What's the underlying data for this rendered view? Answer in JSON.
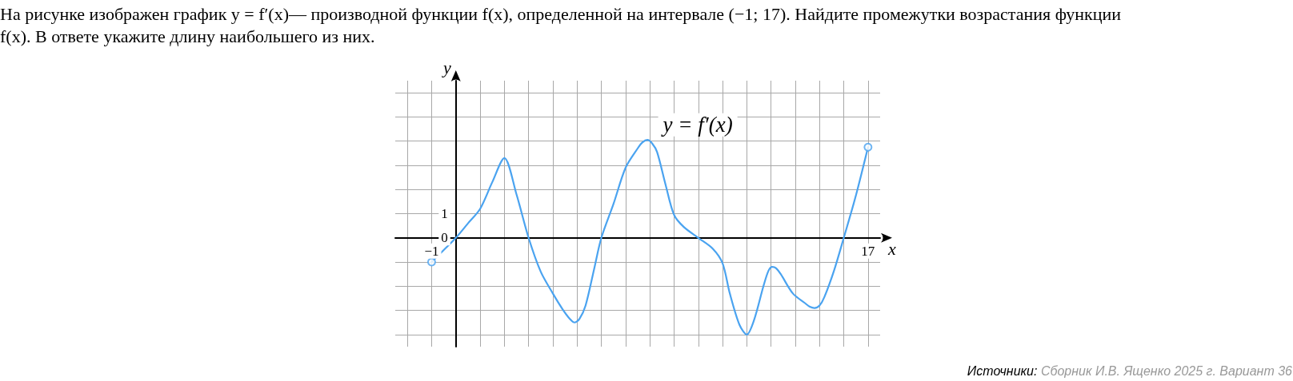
{
  "chart_data": {
    "type": "line",
    "title": "На рисунке изображен график y = f′(x)— производной функции f(x), определенной на интервале (−1; 17). Найдите промежутки возрастания функции f(x). В ответе укажите длину наибольшего из них.",
    "xlabel": "x",
    "ylabel": "y",
    "annotations": [
      "Источники: Сборник И.В. Ященко 2025 г. Вариант 36"
    ],
    "xlim": [
      -2.5,
      17.5
    ],
    "ylim": [
      -4.5,
      6.5
    ],
    "xticks": [
      {
        "value": -2,
        "label": null
      },
      {
        "value": -1,
        "label": "−1"
      },
      {
        "value": 0,
        "label": null
      },
      {
        "value": 1,
        "label": null
      },
      {
        "value": 2,
        "label": null
      },
      {
        "value": 3,
        "label": null
      },
      {
        "value": 4,
        "label": null
      },
      {
        "value": 5,
        "label": null
      },
      {
        "value": 6,
        "label": null
      },
      {
        "value": 7,
        "label": null
      },
      {
        "value": 8,
        "label": null
      },
      {
        "value": 9,
        "label": null
      },
      {
        "value": 10,
        "label": null
      },
      {
        "value": 11,
        "label": null
      },
      {
        "value": 12,
        "label": null
      },
      {
        "value": 13,
        "label": null
      },
      {
        "value": 14,
        "label": null
      },
      {
        "value": 15,
        "label": null
      },
      {
        "value": 16,
        "label": null
      },
      17
    ],
    "yticks": [
      {
        "value": -4,
        "label": null
      },
      {
        "value": -3,
        "label": null
      },
      {
        "value": -2,
        "label": null
      },
      {
        "value": -1,
        "label": null
      },
      {
        "value": 0,
        "label": "0"
      },
      1,
      {
        "value": 2,
        "label": null
      },
      {
        "value": 3,
        "label": null
      },
      {
        "value": 4,
        "label": null
      },
      {
        "value": 5,
        "label": null
      },
      {
        "value": 6,
        "label": null
      }
    ],
    "grid": true,
    "legend": false,
    "series": [
      {
        "name": "y = f′(x)",
        "color": "#4aa3f0",
        "marker": "none",
        "x": [
          -1,
          -0.5,
          0,
          0.5,
          1,
          1.5,
          2,
          2.5,
          3,
          3.5,
          4,
          4.4,
          4.7,
          4.9,
          5.1,
          5.35,
          5.7,
          6,
          6.5,
          7,
          7.5,
          7.7,
          7.9,
          8.1,
          8.3,
          8.65,
          9,
          9.4,
          10,
          10.6,
          11,
          11.3,
          11.7,
          12,
          12.3,
          12.7,
          12.9,
          13.05,
          13.2,
          13.4,
          13.9,
          14.4,
          14.6,
          14.8,
          15,
          15.2,
          15.6,
          16,
          16.5,
          17
        ],
        "values": [
          -1,
          -0.5,
          0,
          0.6,
          1.2,
          2.3,
          3.3,
          1.8,
          0,
          -1.4,
          -2.3,
          -2.95,
          -3.35,
          -3.5,
          -3.35,
          -2.8,
          -1.3,
          0,
          1.4,
          2.9,
          3.7,
          3.95,
          4.05,
          3.9,
          3.55,
          2.2,
          0.95,
          0.45,
          0,
          -0.45,
          -1.05,
          -2.3,
          -3.6,
          -4,
          -3.4,
          -1.95,
          -1.35,
          -1.2,
          -1.25,
          -1.5,
          -2.3,
          -2.7,
          -2.85,
          -2.9,
          -2.8,
          -2.45,
          -1.35,
          0,
          1.75,
          3.75
        ]
      },
      {
        "type": "scatter",
        "color": "#4aa3f0",
        "marker": "circle",
        "x": [
          -1,
          17
        ],
        "values": [
          -1,
          3.75
        ]
      }
    ]
  }
}
